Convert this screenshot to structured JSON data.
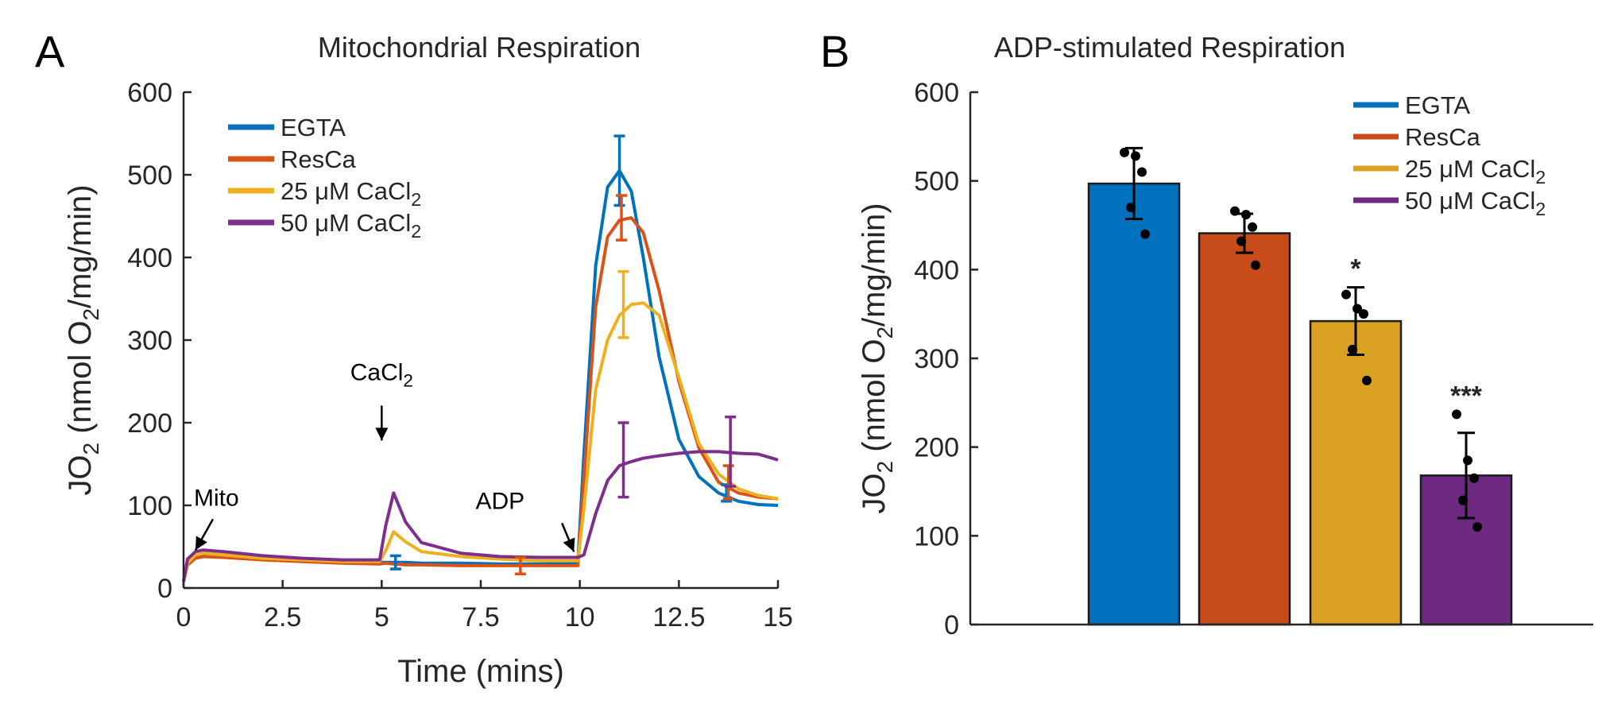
{
  "chart_data": [
    {
      "panel": "A",
      "type": "line",
      "title": "Mitochondrial Respiration",
      "xlabel": "Time (mins)",
      "ylabel": {
        "prefix": "JO",
        "sub": "2",
        "mid": " (nmol O",
        "sub2": "2",
        "suffix": "/mg/min)"
      },
      "xlim": [
        0,
        15
      ],
      "ylim": [
        0,
        600
      ],
      "xticks": [
        0,
        2.5,
        5,
        7.5,
        10,
        12.5,
        15
      ],
      "xtick_labels": [
        "0",
        "2.5",
        "5",
        "7.5",
        "10",
        "12.5",
        "15"
      ],
      "yticks": [
        0,
        100,
        200,
        300,
        400,
        500,
        600
      ],
      "ytick_labels": [
        "0",
        "100",
        "200",
        "300",
        "400",
        "500",
        "600"
      ],
      "x": [
        0,
        0.1,
        0.3,
        0.5,
        1,
        2,
        3,
        4,
        4.95,
        5.1,
        5.3,
        5.6,
        6,
        7,
        8,
        9,
        9.95,
        10.1,
        10.4,
        10.7,
        11,
        11.3,
        11.6,
        12,
        12.5,
        13,
        13.5,
        14,
        14.5,
        15
      ],
      "series": [
        {
          "name": "EGTA",
          "color": "#0072BD",
          "values": [
            8,
            30,
            38,
            40,
            39,
            35,
            33,
            32,
            31,
            31,
            31,
            31,
            30,
            30,
            29,
            29,
            30,
            160,
            390,
            485,
            505,
            480,
            400,
            280,
            180,
            135,
            115,
            105,
            101,
            100
          ]
        },
        {
          "name": "ResCa",
          "color": "#D95319",
          "values": [
            8,
            28,
            36,
            38,
            37,
            34,
            32,
            30,
            29,
            30,
            29,
            28,
            28,
            27,
            27,
            27,
            27,
            130,
            340,
            425,
            445,
            448,
            430,
            360,
            250,
            170,
            128,
            115,
            110,
            108
          ]
        },
        {
          "name": "25 μM CaCl",
          "sub": "2",
          "color": "#EDB120",
          "values": [
            8,
            30,
            40,
            42,
            40,
            36,
            34,
            32,
            32,
            45,
            68,
            56,
            44,
            38,
            35,
            33,
            33,
            95,
            240,
            300,
            330,
            343,
            345,
            330,
            255,
            175,
            138,
            120,
            112,
            108
          ]
        },
        {
          "name": "50 μM CaCl",
          "sub": "2",
          "color": "#7E2F8E",
          "values": [
            8,
            35,
            44,
            46,
            44,
            39,
            36,
            34,
            34,
            75,
            115,
            80,
            55,
            42,
            38,
            37,
            37,
            40,
            90,
            130,
            148,
            153,
            157,
            160,
            163,
            165,
            165,
            163,
            162,
            155
          ]
        }
      ],
      "error_bars": [
        {
          "series": "EGTA",
          "x": 11.0,
          "y": 505,
          "err": 42
        },
        {
          "series": "ResCa",
          "x": 11.05,
          "y": 448,
          "err": 27
        },
        {
          "series": "25 μM CaCl2",
          "x": 11.1,
          "y": 343,
          "err": 40
        },
        {
          "series": "50 μM CaCl2",
          "x": 11.1,
          "y": 155,
          "err": 45
        },
        {
          "series": "EGTA",
          "x": 13.7,
          "y": 115,
          "err": 10
        },
        {
          "series": "ResCa",
          "x": 13.75,
          "y": 128,
          "err": 20
        },
        {
          "series": "50 μM CaCl2",
          "x": 13.8,
          "y": 165,
          "err": 42
        },
        {
          "series": "ResCa",
          "x": 8.5,
          "y": 27,
          "err": 10
        },
        {
          "series": "EGTA",
          "x": 5.35,
          "y": 31,
          "err": 8
        }
      ],
      "annotations": [
        {
          "text": "Mito",
          "x": 0.3,
          "y": 40
        },
        {
          "text": "CaCl",
          "sub": "2",
          "x": 5.0,
          "y": 115
        },
        {
          "text": "ADP",
          "x": 9.85,
          "y": 40
        }
      ],
      "legend": "top-left"
    },
    {
      "panel": "B",
      "type": "bar",
      "title": "ADP-stimulated Respiration",
      "ylabel": {
        "prefix": "JO",
        "sub": "2",
        "mid": " (nmol O",
        "sub2": "2",
        "suffix": "/mg/min)"
      },
      "ylim": [
        0,
        600
      ],
      "yticks": [
        0,
        100,
        200,
        300,
        400,
        500,
        600
      ],
      "ytick_labels": [
        "0",
        "100",
        "200",
        "300",
        "400",
        "500",
        "600"
      ],
      "categories": [
        {
          "name": "EGTA",
          "sub": ""
        },
        {
          "name": "ResCa",
          "sub": ""
        },
        {
          "name": "25 μM CaCl",
          "sub": "2"
        },
        {
          "name": "50 μM CaCl",
          "sub": "2"
        }
      ],
      "values": [
        497,
        441,
        342,
        168
      ],
      "errors": [
        40,
        22,
        38,
        48
      ],
      "colors": [
        "#0072BD",
        "#C84B1A",
        "#D9A021",
        "#6E2A80"
      ],
      "points": [
        [
          532,
          528,
          510,
          470,
          440
        ],
        [
          466,
          462,
          448,
          432,
          405
        ],
        [
          372,
          356,
          350,
          310,
          275
        ],
        [
          237,
          185,
          165,
          140,
          110
        ]
      ],
      "significance": [
        "",
        "",
        "*",
        "***"
      ],
      "legend": "top-right"
    }
  ],
  "panel_labels": [
    "A",
    "B"
  ]
}
